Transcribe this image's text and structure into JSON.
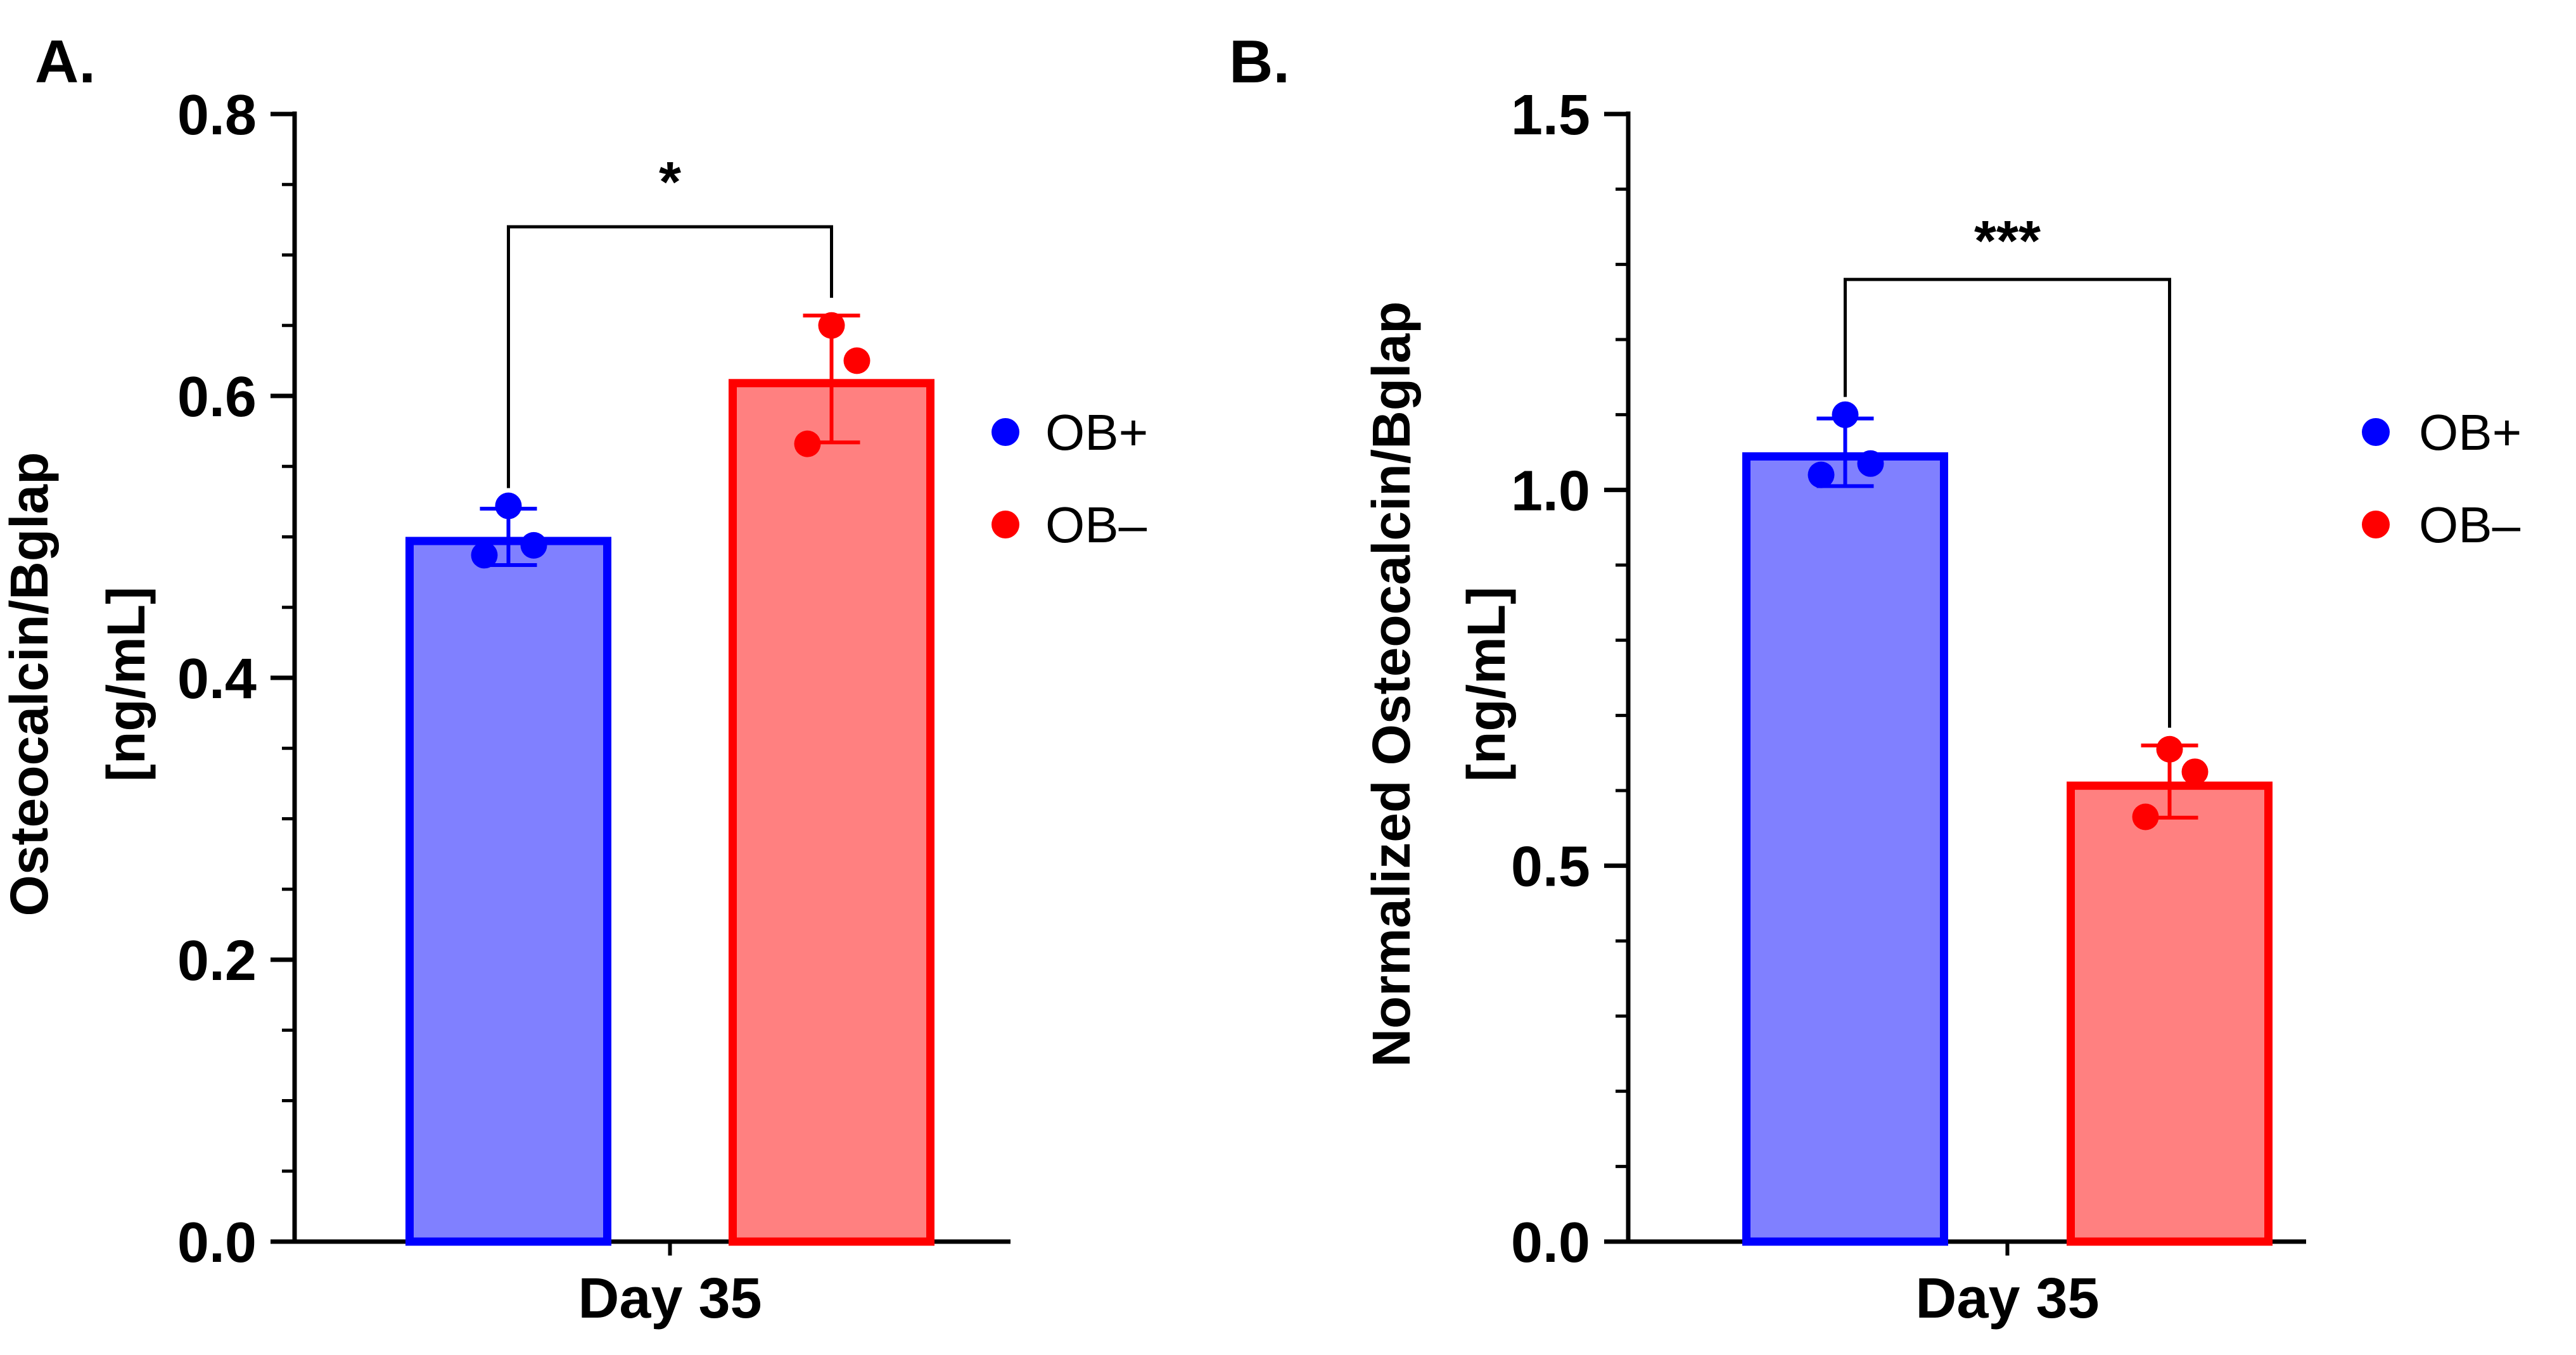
{
  "chart_data": [
    {
      "type": "bar",
      "panel_label": "A.",
      "categories": [
        "Day 35"
      ],
      "xlabel": "Day 35",
      "ylabel_lines": [
        "Osteocalcin/Bglap",
        "[ng/mL]"
      ],
      "ylim": [
        0,
        0.8
      ],
      "yticks": [
        0.0,
        0.2,
        0.4,
        0.6,
        0.8
      ],
      "ytick_labels": [
        "0.0",
        "0.2",
        "0.4",
        "0.6",
        "0.8"
      ],
      "grid": false,
      "legend_position": "right",
      "series": [
        {
          "name": "OB+",
          "legend_label": "OB+",
          "value": 0.5,
          "error": 0.02,
          "points": [
            0.487,
            0.494,
            0.522
          ],
          "edge_color": "#0000ff",
          "fill_color": "#8080ff",
          "point_color": "#0000ff"
        },
        {
          "name": "OB–",
          "legend_label": "OB–",
          "value": 0.612,
          "error": 0.045,
          "points": [
            0.566,
            0.625,
            0.65
          ],
          "edge_color": "#ff0000",
          "fill_color": "#ff8080",
          "point_color": "#ff0000"
        }
      ],
      "significance": {
        "label": "*",
        "bracket_y": 0.72
      }
    },
    {
      "type": "bar",
      "panel_label": "B.",
      "categories": [
        "Day 35"
      ],
      "xlabel": "Day 35",
      "ylabel_lines": [
        "Normalized Osteocalcin/Bglap",
        "[ng/mL]"
      ],
      "ylim": [
        0,
        1.5
      ],
      "yticks": [
        0.0,
        0.5,
        1.0,
        1.5
      ],
      "ytick_labels": [
        "0.0",
        "0.5",
        "1.0",
        "1.5"
      ],
      "grid": false,
      "legend_position": "right",
      "series": [
        {
          "name": "OB+",
          "legend_label": "OB+",
          "value": 1.05,
          "error": 0.045,
          "points": [
            1.02,
            1.035,
            1.1
          ],
          "edge_color": "#0000ff",
          "fill_color": "#8080ff",
          "point_color": "#0000ff"
        },
        {
          "name": "OB–",
          "legend_label": "OB–",
          "value": 0.612,
          "error": 0.048,
          "points": [
            0.565,
            0.625,
            0.655
          ],
          "edge_color": "#ff0000",
          "fill_color": "#ff8080",
          "point_color": "#ff0000"
        }
      ],
      "significance": {
        "label": "***",
        "bracket_y": 1.28
      }
    }
  ]
}
